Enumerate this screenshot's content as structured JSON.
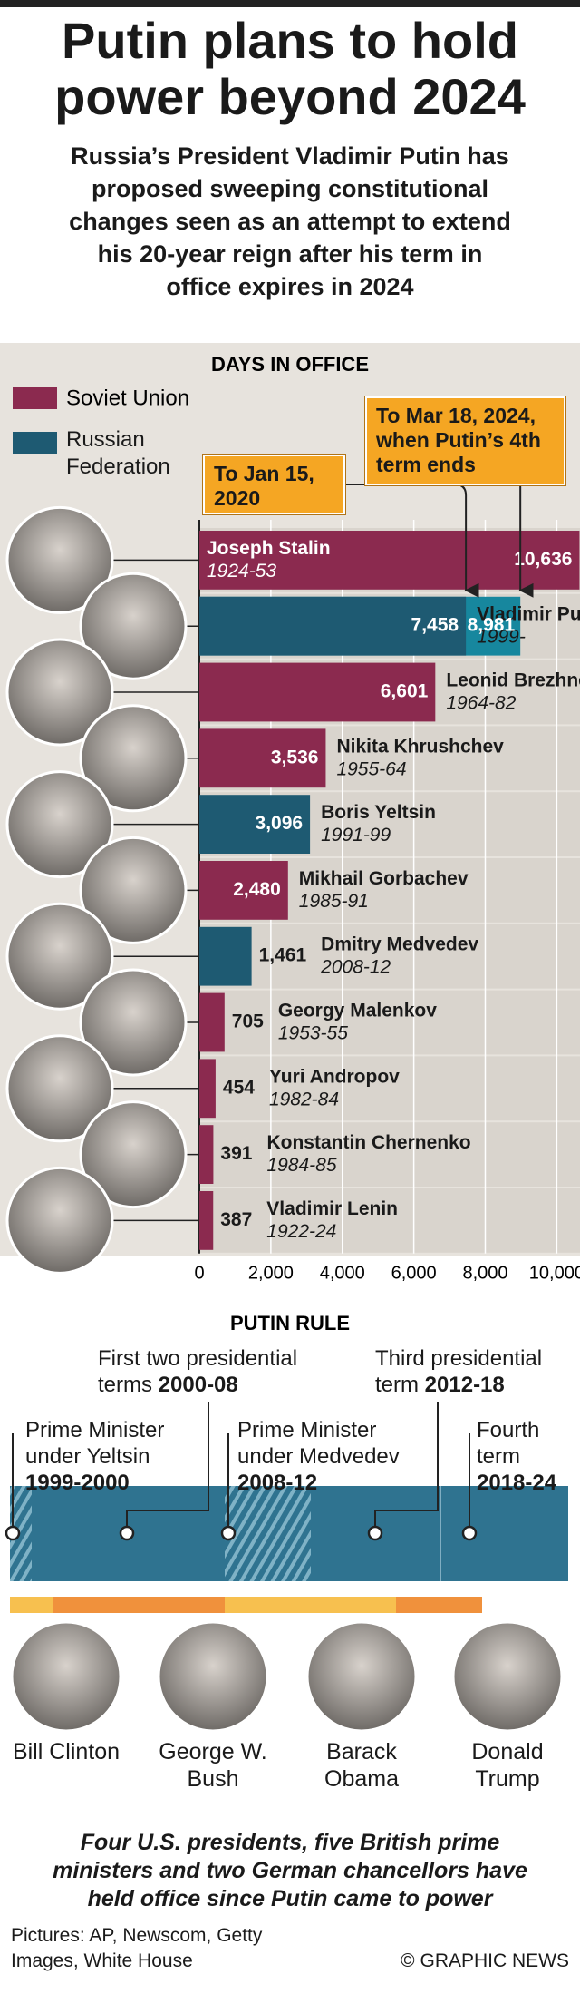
{
  "header": {
    "title": "Putin plans to hold power beyond 2024",
    "subtitle": "Russia’s President Vladimir Putin has proposed sweeping constitutional changes seen as an attempt to extend his 20-year reign after his term in office expires in 2024"
  },
  "chart_data": {
    "type": "bar",
    "orientation": "horizontal",
    "title": "DAYS IN OFFICE",
    "categories": [
      "Joseph Stalin",
      "Vladimir Putin",
      "Leonid Brezhnev",
      "Nikita Khrushchev",
      "Boris Yeltsin",
      "Mikhail Gorbachev",
      "Dmitry Medvedev",
      "Georgy Malenkov",
      "Yuri Andropov",
      "Konstantin Chernenko",
      "Vladimir Lenin"
    ],
    "terms": [
      "1924-53",
      "1999-",
      "1964-82",
      "1955-64",
      "1991-99",
      "1985-91",
      "2008-12",
      "1953-55",
      "1982-84",
      "1984-85",
      "1922-24"
    ],
    "series": [
      {
        "name": "Soviet Union",
        "color": "#8b2a4f",
        "values": [
          10636,
          null,
          6601,
          3536,
          null,
          2480,
          null,
          705,
          454,
          391,
          387
        ],
        "value_labels": [
          "10,636",
          null,
          "6,601",
          "3,536",
          null,
          "2,480",
          null,
          "705",
          "454",
          "391",
          "387"
        ]
      },
      {
        "name": "Russian Federation",
        "color": "#1e5a72",
        "values": [
          null,
          7458,
          null,
          null,
          3096,
          null,
          1461,
          null,
          null,
          null,
          null
        ],
        "value_labels": [
          null,
          "7,458",
          null,
          null,
          "3,096",
          null,
          "1,461",
          null,
          null,
          null,
          null
        ]
      }
    ],
    "extension": {
      "color": "#17879e",
      "values": [
        null,
        8981,
        null,
        null,
        null,
        null,
        null,
        null,
        null,
        null,
        null
      ],
      "value_labels": [
        null,
        "8,981",
        null,
        null,
        null,
        null,
        null,
        null,
        null,
        null,
        null
      ]
    },
    "annotations": [
      "To Jan 15, 2020",
      "To Mar 18, 2024, when Putin’s 4th term ends"
    ],
    "xlim": [
      0,
      10650
    ],
    "xticks": [
      0,
      {
        "value": 2000,
        "label": "2,000"
      },
      {
        "value": 4000,
        "label": "4,000"
      },
      {
        "value": 6000,
        "label": "6,000"
      },
      {
        "value": 8000,
        "label": "8,000"
      },
      {
        "value": 10000,
        "label": "10,000"
      }
    ]
  },
  "putin_rule": {
    "title": "PUTIN RULE",
    "periods": [
      {
        "text": "Prime Minister under Yeltsin",
        "years": "1999-2000"
      },
      {
        "text": "First two presidential terms",
        "years": "2000-08"
      },
      {
        "text": "Prime Minister under Medvedev",
        "years": "2008-12"
      },
      {
        "text": "Third presidential term",
        "years": "2012-18"
      },
      {
        "text": "Fourth term",
        "years": "2018-24"
      }
    ],
    "presidents": [
      "Bill Clinton",
      "George W. Bush",
      "Barack Obama",
      "Donald Trump"
    ]
  },
  "footer": {
    "note": "Four U.S. presidents, five British prime ministers and two German chancellors have held office since Putin came to power",
    "credits": "Pictures: AP, Newscom, Getty Images, White House",
    "copyright": "© GRAPHIC NEWS"
  }
}
